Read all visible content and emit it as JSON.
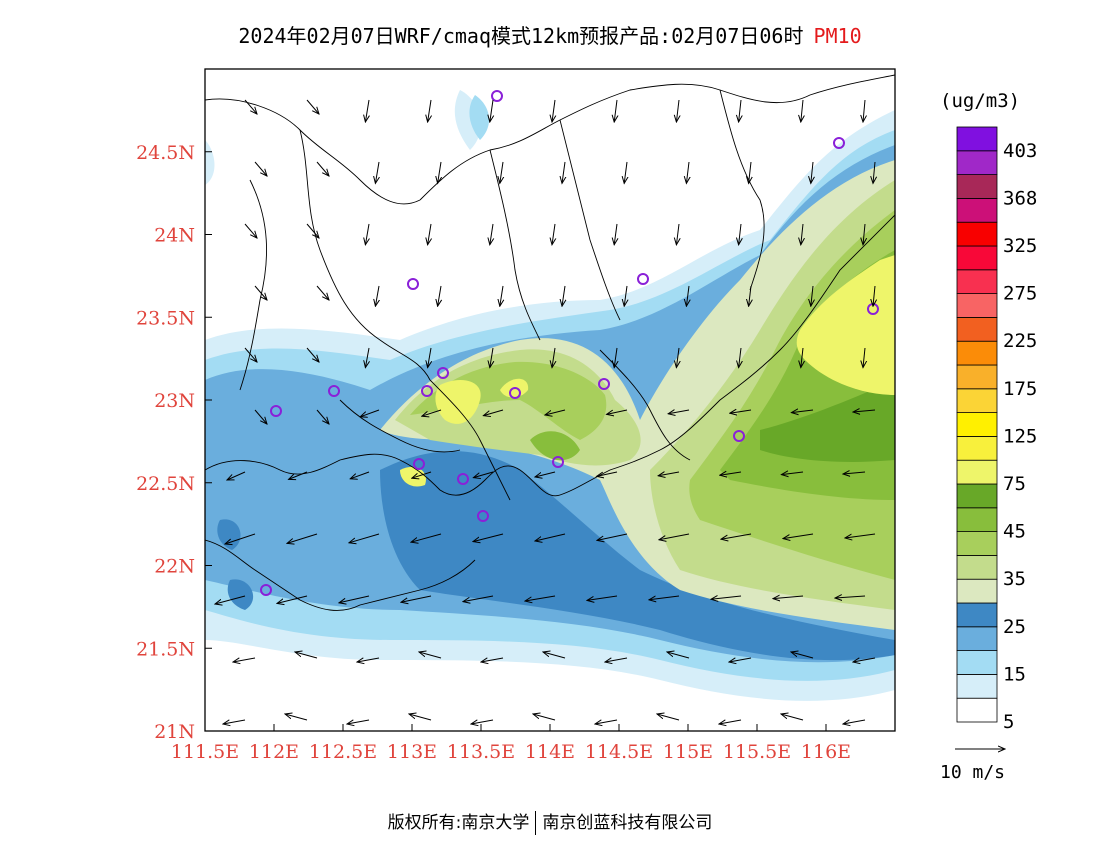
{
  "header": {
    "title": "2024年02月07日WRF/cmaq模式12km预报产品:02月07日06时",
    "pollutant": "PM10"
  },
  "map": {
    "lat_labels": [
      "24.5N",
      "24N",
      "23.5N",
      "23N",
      "22.5N",
      "22N",
      "21.5N",
      "21N"
    ],
    "lon_labels": [
      "111.5E",
      "112E",
      "112.5E",
      "113E",
      "113.5E",
      "114E",
      "114.5E",
      "115E",
      "115.5E",
      "116E"
    ],
    "lat_range": [
      21,
      25
    ],
    "lon_range": [
      111.5,
      116.5
    ]
  },
  "legend": {
    "unit": "(ug/m3)",
    "levels": [
      "403",
      "368",
      "325",
      "275",
      "225",
      "175",
      "125",
      "75",
      "45",
      "35",
      "25",
      "15",
      "5"
    ],
    "colors": [
      "#ffffff",
      "#d6eef9",
      "#a3dcf3",
      "#6aaedd",
      "#3e88c4",
      "#dce8c0",
      "#c3dc8c",
      "#a8cf5c",
      "#88be3c",
      "#68a828",
      "#eef56a",
      "#f8f03c",
      "#fff000",
      "#fbd436",
      "#f9b02a",
      "#fb8c08",
      "#f26020",
      "#f86464",
      "#f83050",
      "#f80838",
      "#f80000",
      "#cc1078",
      "#a82858",
      "#a028c8",
      "#8010e0"
    ]
  },
  "wind_scale": {
    "label": "10 m/s"
  },
  "footer": {
    "left": "版权所有:南京大学",
    "right": "南京创蓝科技有限公司"
  }
}
